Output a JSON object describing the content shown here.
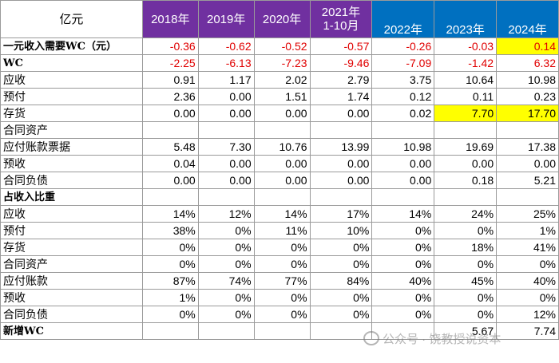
{
  "header": {
    "corner": "亿元",
    "years": [
      "2018年",
      "2019年",
      "2020年",
      "2021年\n1-10月",
      "2022年",
      "2023年",
      "2024年"
    ]
  },
  "rows": [
    {
      "label": "一元收入需要WC（元）",
      "bold": true,
      "neg": true,
      "values": [
        "-0.36",
        "-0.62",
        "-0.52",
        "-0.57",
        "-0.26",
        "-0.03",
        "0.14"
      ],
      "highlight": [
        6
      ]
    },
    {
      "label": "WC",
      "bold": true,
      "neg": true,
      "values": [
        "-2.25",
        "-6.13",
        "-7.23",
        "-9.46",
        "-7.09",
        "-1.42",
        "6.32"
      ],
      "highlight": []
    },
    {
      "label": "应收",
      "values": [
        "0.91",
        "1.17",
        "2.02",
        "2.79",
        "3.75",
        "10.64",
        "10.98"
      ],
      "highlight": []
    },
    {
      "label": "预付",
      "values": [
        "2.36",
        "0.00",
        "1.51",
        "1.74",
        "0.12",
        "0.11",
        "0.23"
      ],
      "highlight": []
    },
    {
      "label": "存货",
      "values": [
        "0.00",
        "0.00",
        "0.00",
        "0.00",
        "0.02",
        "7.70",
        "17.70"
      ],
      "highlight": [
        5,
        6
      ]
    },
    {
      "label": "合同资产",
      "values": [
        "",
        "",
        "",
        "",
        "",
        "",
        ""
      ],
      "highlight": []
    },
    {
      "label": "应付账款票据",
      "values": [
        "5.48",
        "7.30",
        "10.76",
        "13.99",
        "10.98",
        "19.69",
        "17.38"
      ],
      "highlight": []
    },
    {
      "label": "预收",
      "values": [
        "0.04",
        "0.00",
        "0.00",
        "0.00",
        "0.00",
        "0.00",
        "0.00"
      ],
      "highlight": []
    },
    {
      "label": "合同负债",
      "values": [
        "0.00",
        "0.00",
        "0.00",
        "0.00",
        "0.00",
        "0.18",
        "5.21"
      ],
      "highlight": []
    },
    {
      "label": "占收入比重",
      "bold": true,
      "values": [
        "",
        "",
        "",
        "",
        "",
        "",
        ""
      ],
      "highlight": []
    },
    {
      "label": "应收",
      "values": [
        "14%",
        "12%",
        "14%",
        "17%",
        "14%",
        "24%",
        "25%"
      ],
      "highlight": []
    },
    {
      "label": "预付",
      "values": [
        "38%",
        "0%",
        "11%",
        "10%",
        "0%",
        "0%",
        "1%"
      ],
      "highlight": []
    },
    {
      "label": "存货",
      "values": [
        "0%",
        "0%",
        "0%",
        "0%",
        "0%",
        "18%",
        "41%"
      ],
      "highlight": []
    },
    {
      "label": "合同资产",
      "values": [
        "0%",
        "0%",
        "0%",
        "0%",
        "0%",
        "0%",
        "0%"
      ],
      "highlight": []
    },
    {
      "label": "应付账款",
      "values": [
        "87%",
        "74%",
        "77%",
        "84%",
        "40%",
        "45%",
        "40%"
      ],
      "highlight": []
    },
    {
      "label": "预收",
      "values": [
        "1%",
        "0%",
        "0%",
        "0%",
        "0%",
        "0%",
        "0%"
      ],
      "highlight": []
    },
    {
      "label": "合同负债",
      "values": [
        "0%",
        "0%",
        "0%",
        "0%",
        "0%",
        "0%",
        "12%"
      ],
      "highlight": []
    },
    {
      "label": "新增WC",
      "bold": true,
      "values": [
        "",
        "",
        "",
        "",
        "",
        "5.67",
        "7.74"
      ],
      "highlight": []
    }
  ],
  "watermark": "公众号 · 饶教授说资本"
}
